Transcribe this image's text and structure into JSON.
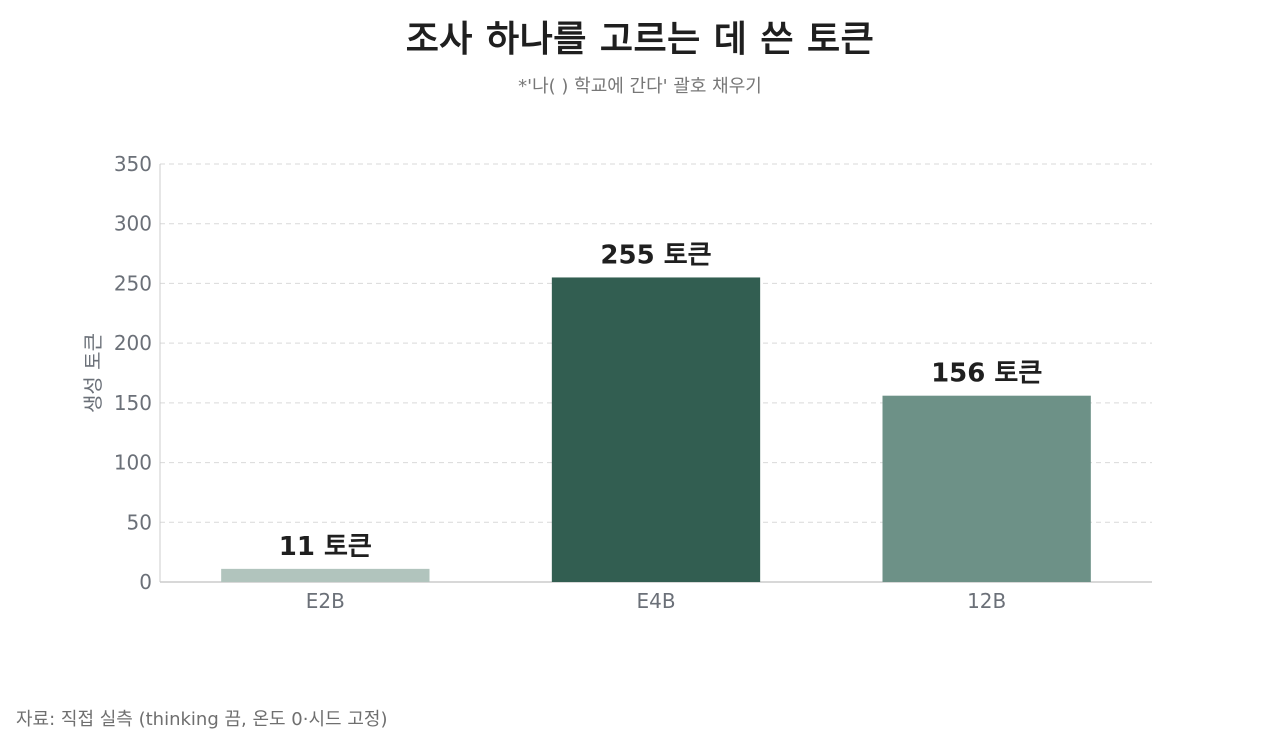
{
  "chart": {
    "title": "조사 하나를 고르는 데 쓴 토큰",
    "subtitle": "*'나( ) 학교에 간다' 괄호 채우기",
    "source": "자료: 직접 실측 (thinking 끔, 온도 0·시드 고정)"
  },
  "colors": {
    "grid": "#d9d9d9",
    "axis": "#cccccc",
    "tick_text": "#6b7078",
    "label_text": "#1f1f1f",
    "ylabel_text": "#6b7078"
  },
  "chart_data": {
    "type": "bar",
    "title": "조사 하나를 고르는 데 쓴 토큰",
    "subtitle": "*'나( ) 학교에 간다' 괄호 채우기",
    "xlabel": "",
    "ylabel": "생성 토큰",
    "categories": [
      "E2B",
      "E4B",
      "12B"
    ],
    "values": [
      11,
      255,
      156
    ],
    "data_labels": [
      "11 토큰",
      "255 토큰",
      "156 토큰"
    ],
    "bar_colors": [
      "#b1c4bd",
      "#325e51",
      "#6d9187"
    ],
    "ylim": [
      0,
      350
    ],
    "yticks": [
      0,
      50,
      100,
      150,
      200,
      250,
      300,
      350
    ],
    "grid": true,
    "legend": "none"
  }
}
